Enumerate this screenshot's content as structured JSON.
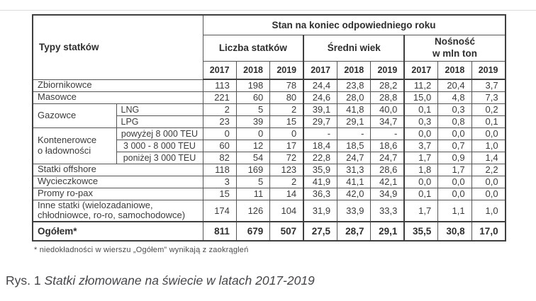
{
  "table": {
    "corner_header": "Typy statków",
    "top_header": "Stan na koniec odpowiedniego roku",
    "groups": [
      {
        "label": "Liczba statków"
      },
      {
        "label": "Średni wiek"
      },
      {
        "label": "Nośność\nw mln ton"
      }
    ],
    "years": [
      "2017",
      "2018",
      "2019",
      "2017",
      "2018",
      "2019",
      "2017",
      "2018",
      "2019"
    ],
    "rows": [
      {
        "label": "Zbiornikowce",
        "cspan": 2,
        "values": [
          "113",
          "198",
          "78",
          "24,4",
          "23,8",
          "28,2",
          "11,2",
          "20,4",
          "3,7"
        ]
      },
      {
        "label": "Masowce",
        "cspan": 2,
        "values": [
          "221",
          "60",
          "80",
          "24,6",
          "28,0",
          "28,8",
          "15,0",
          "4,8",
          "7,3"
        ]
      },
      {
        "label": "Gazowce",
        "lspan": 2,
        "sub": "LNG",
        "values": [
          "2",
          "5",
          "2",
          "39,1",
          "41,8",
          "40,0",
          "0,1",
          "0,3",
          "0,2"
        ]
      },
      {
        "sub": "LPG",
        "values": [
          "23",
          "39",
          "15",
          "29,7",
          "29,1",
          "34,7",
          "0,3",
          "0,8",
          "0,1"
        ]
      },
      {
        "label": "Kontenerowce\no ładowności",
        "lspan": 3,
        "sub": "powyżej 8 000 TEU",
        "sub_center": true,
        "values": [
          "0",
          "0",
          "0",
          "-",
          "-",
          "-",
          "0,0",
          "0,0",
          "0,0"
        ]
      },
      {
        "sub": "3 000 - 8 000 TEU",
        "sub_center": true,
        "values": [
          "60",
          "12",
          "17",
          "18,4",
          "18,5",
          "18,6",
          "3,7",
          "0,7",
          "1,0"
        ]
      },
      {
        "sub": "poniżej 3 000 TEU",
        "sub_center": true,
        "values": [
          "82",
          "54",
          "72",
          "22,8",
          "24,7",
          "24,7",
          "1,7",
          "0,9",
          "1,4"
        ]
      },
      {
        "label": "Statki offshore",
        "cspan": 2,
        "values": [
          "118",
          "169",
          "123",
          "35,9",
          "31,3",
          "28,6",
          "1,8",
          "1,7",
          "2,2"
        ]
      },
      {
        "label": "Wycieczkowce",
        "cspan": 2,
        "values": [
          "3",
          "5",
          "2",
          "41,9",
          "41,1",
          "42,1",
          "0,0",
          "0,0",
          "0,0"
        ]
      },
      {
        "label": "Promy ro-pax",
        "cspan": 2,
        "values": [
          "15",
          "11",
          "14",
          "36,3",
          "42,0",
          "34,9",
          "0,1",
          "0,0",
          "0,0"
        ]
      },
      {
        "label": "Inne statki (wielozadaniowe,\nchłodniowce, ro-ro, samochodowce)",
        "cspan": 2,
        "tall": true,
        "values": [
          "174",
          "126",
          "104",
          "31,9",
          "33,9",
          "33,3",
          "1,7",
          "1,1",
          "1,0"
        ]
      },
      {
        "label": "Ogółem*",
        "cspan": 2,
        "total": true,
        "values": [
          "811",
          "679",
          "507",
          "27,5",
          "28,7",
          "29,1",
          "35,5",
          "30,8",
          "17,0"
        ]
      }
    ]
  },
  "footnote": "* niedokładności w wierszu „Ogółem” wynikają z zaokrągleń",
  "caption": {
    "prefix": "Rys. 1 ",
    "title": "Statki złomowane na świecie w latach 2017-2019"
  }
}
